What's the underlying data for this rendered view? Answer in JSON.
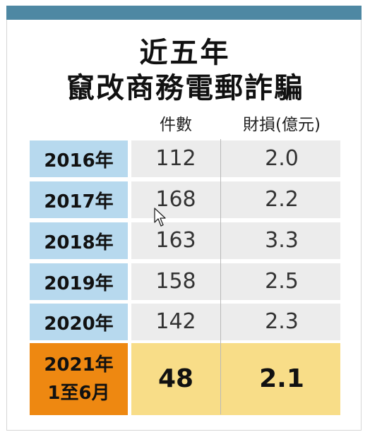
{
  "chart_data": {
    "type": "table",
    "title_line1": "近五年",
    "title_line2": "竄改商務電郵詐騙",
    "columns": [
      "件數",
      "財損(億元)"
    ],
    "rows": [
      {
        "label": "2016年",
        "cases": "112",
        "loss": "2.0"
      },
      {
        "label": "2017年",
        "cases": "168",
        "loss": "2.2"
      },
      {
        "label": "2018年",
        "cases": "163",
        "loss": "3.3"
      },
      {
        "label": "2019年",
        "cases": "158",
        "loss": "2.5"
      },
      {
        "label": "2020年",
        "cases": "142",
        "loss": "2.3"
      }
    ],
    "highlight": {
      "label_line1": "2021年",
      "label_line2": "1至6月",
      "cases": "48",
      "loss": "2.1"
    }
  },
  "colors": {
    "top_bar": "#4e88a3",
    "year_cell": "#b7d9ee",
    "value_cell": "#ececec",
    "highlight_year": "#ee8811",
    "highlight_value": "#f8dd88"
  }
}
